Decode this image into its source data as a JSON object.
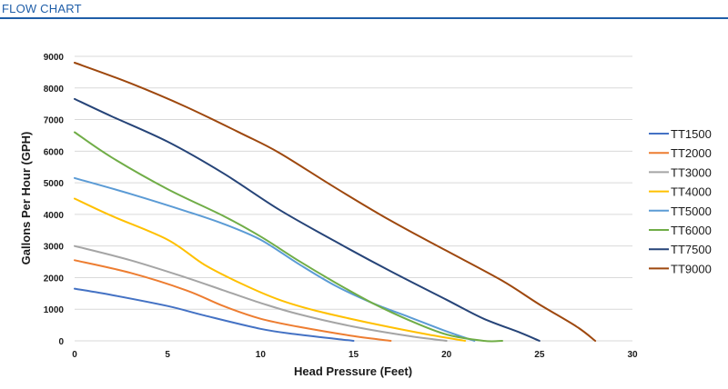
{
  "header": {
    "title": "FLOW CHART",
    "accent": "#1f5ea8"
  },
  "chart_data": {
    "type": "line",
    "xlabel": "Head Pressure (Feet)",
    "ylabel": "Gallons Per Hour (GPH)",
    "xlim": [
      0,
      30
    ],
    "ylim": [
      0,
      9000
    ],
    "xticks": [
      0,
      5,
      10,
      15,
      20,
      25,
      30
    ],
    "yticks": [
      0,
      1000,
      2000,
      3000,
      4000,
      5000,
      6000,
      7000,
      8000,
      9000
    ],
    "grid": {
      "horizontal": true,
      "vertical": false,
      "color": "#d9d9d9"
    },
    "legend_position": "right",
    "series": [
      {
        "name": "TT1500",
        "color": "#4472c4",
        "points": [
          [
            0,
            1650
          ],
          [
            2,
            1450
          ],
          [
            5,
            1100
          ],
          [
            7,
            800
          ],
          [
            10,
            380
          ],
          [
            12,
            200
          ],
          [
            15,
            0
          ]
        ]
      },
      {
        "name": "TT2000",
        "color": "#ed7d31",
        "points": [
          [
            0,
            2550
          ],
          [
            3,
            2150
          ],
          [
            6,
            1600
          ],
          [
            8,
            1100
          ],
          [
            10,
            700
          ],
          [
            12,
            450
          ],
          [
            15,
            150
          ],
          [
            17,
            0
          ]
        ]
      },
      {
        "name": "TT3000",
        "color": "#a5a5a5",
        "points": [
          [
            0,
            3000
          ],
          [
            3,
            2550
          ],
          [
            6,
            2000
          ],
          [
            8,
            1600
          ],
          [
            10,
            1200
          ],
          [
            12,
            850
          ],
          [
            15,
            450
          ],
          [
            18,
            150
          ],
          [
            20,
            0
          ]
        ]
      },
      {
        "name": "TT4000",
        "color": "#ffc000",
        "points": [
          [
            0,
            4500
          ],
          [
            2,
            3950
          ],
          [
            5,
            3200
          ],
          [
            7,
            2400
          ],
          [
            9,
            1800
          ],
          [
            11,
            1300
          ],
          [
            13,
            950
          ],
          [
            16,
            550
          ],
          [
            19,
            200
          ],
          [
            21,
            0
          ]
        ]
      },
      {
        "name": "TT5000",
        "color": "#5b9bd5",
        "points": [
          [
            0,
            5150
          ],
          [
            3,
            4650
          ],
          [
            6,
            4100
          ],
          [
            8,
            3700
          ],
          [
            10,
            3200
          ],
          [
            12,
            2450
          ],
          [
            14,
            1750
          ],
          [
            16,
            1200
          ],
          [
            18,
            750
          ],
          [
            20,
            300
          ],
          [
            21.5,
            0
          ]
        ]
      },
      {
        "name": "TT6000",
        "color": "#70ad47",
        "points": [
          [
            0,
            6600
          ],
          [
            2,
            5800
          ],
          [
            5,
            4800
          ],
          [
            8,
            3950
          ],
          [
            10,
            3300
          ],
          [
            12,
            2550
          ],
          [
            14,
            1850
          ],
          [
            16,
            1200
          ],
          [
            18,
            650
          ],
          [
            20,
            200
          ],
          [
            22,
            0
          ],
          [
            23,
            0
          ]
        ]
      },
      {
        "name": "TT7500",
        "color": "#264478",
        "points": [
          [
            0,
            7650
          ],
          [
            2,
            7100
          ],
          [
            5,
            6300
          ],
          [
            8,
            5300
          ],
          [
            11,
            4150
          ],
          [
            14,
            3150
          ],
          [
            17,
            2200
          ],
          [
            20,
            1300
          ],
          [
            22,
            700
          ],
          [
            24,
            250
          ],
          [
            25,
            0
          ]
        ]
      },
      {
        "name": "TT9000",
        "color": "#9e480e",
        "points": [
          [
            0,
            8800
          ],
          [
            3,
            8150
          ],
          [
            6,
            7400
          ],
          [
            9,
            6550
          ],
          [
            11,
            5950
          ],
          [
            14,
            4850
          ],
          [
            17,
            3800
          ],
          [
            20,
            2850
          ],
          [
            23,
            1900
          ],
          [
            25,
            1150
          ],
          [
            27,
            450
          ],
          [
            28,
            0
          ]
        ]
      }
    ]
  }
}
